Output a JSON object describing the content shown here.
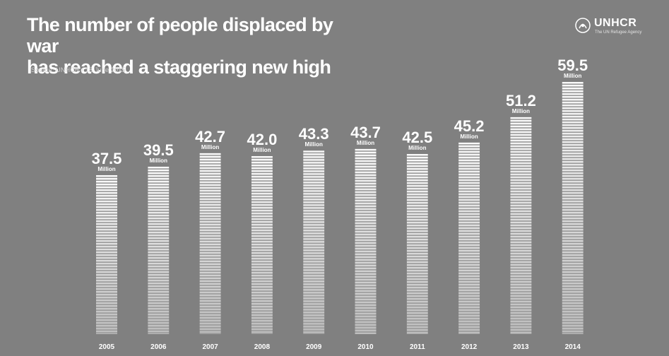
{
  "header": {
    "title_line1": "The number of people displaced by war",
    "title_line2": "has reached a staggering new high",
    "source": "Source: UNHCR / 18 June 2015"
  },
  "logo": {
    "name": "UNHCR",
    "tagline": "The UN Refugee Agency",
    "icon": "unhcr-emblem-icon"
  },
  "colors": {
    "background": "#808080",
    "bar_stripe": "#ffffff",
    "text": "#ffffff"
  },
  "chart_data": {
    "type": "bar",
    "title": "The number of people displaced by war has reached a staggering new high",
    "categories": [
      "2005",
      "2006",
      "2007",
      "2008",
      "2009",
      "2010",
      "2011",
      "2012",
      "2013",
      "2014"
    ],
    "values": [
      37.5,
      39.5,
      42.7,
      42.0,
      43.3,
      43.7,
      42.5,
      45.2,
      51.2,
      59.5
    ],
    "value_labels": [
      "37.5",
      "39.5",
      "42.7",
      "42.0",
      "43.3",
      "43.7",
      "42.5",
      "45.2",
      "51.2",
      "59.5"
    ],
    "unit_label": "Million",
    "xlabel": "",
    "ylabel": "",
    "grid": false,
    "legend": "none"
  }
}
